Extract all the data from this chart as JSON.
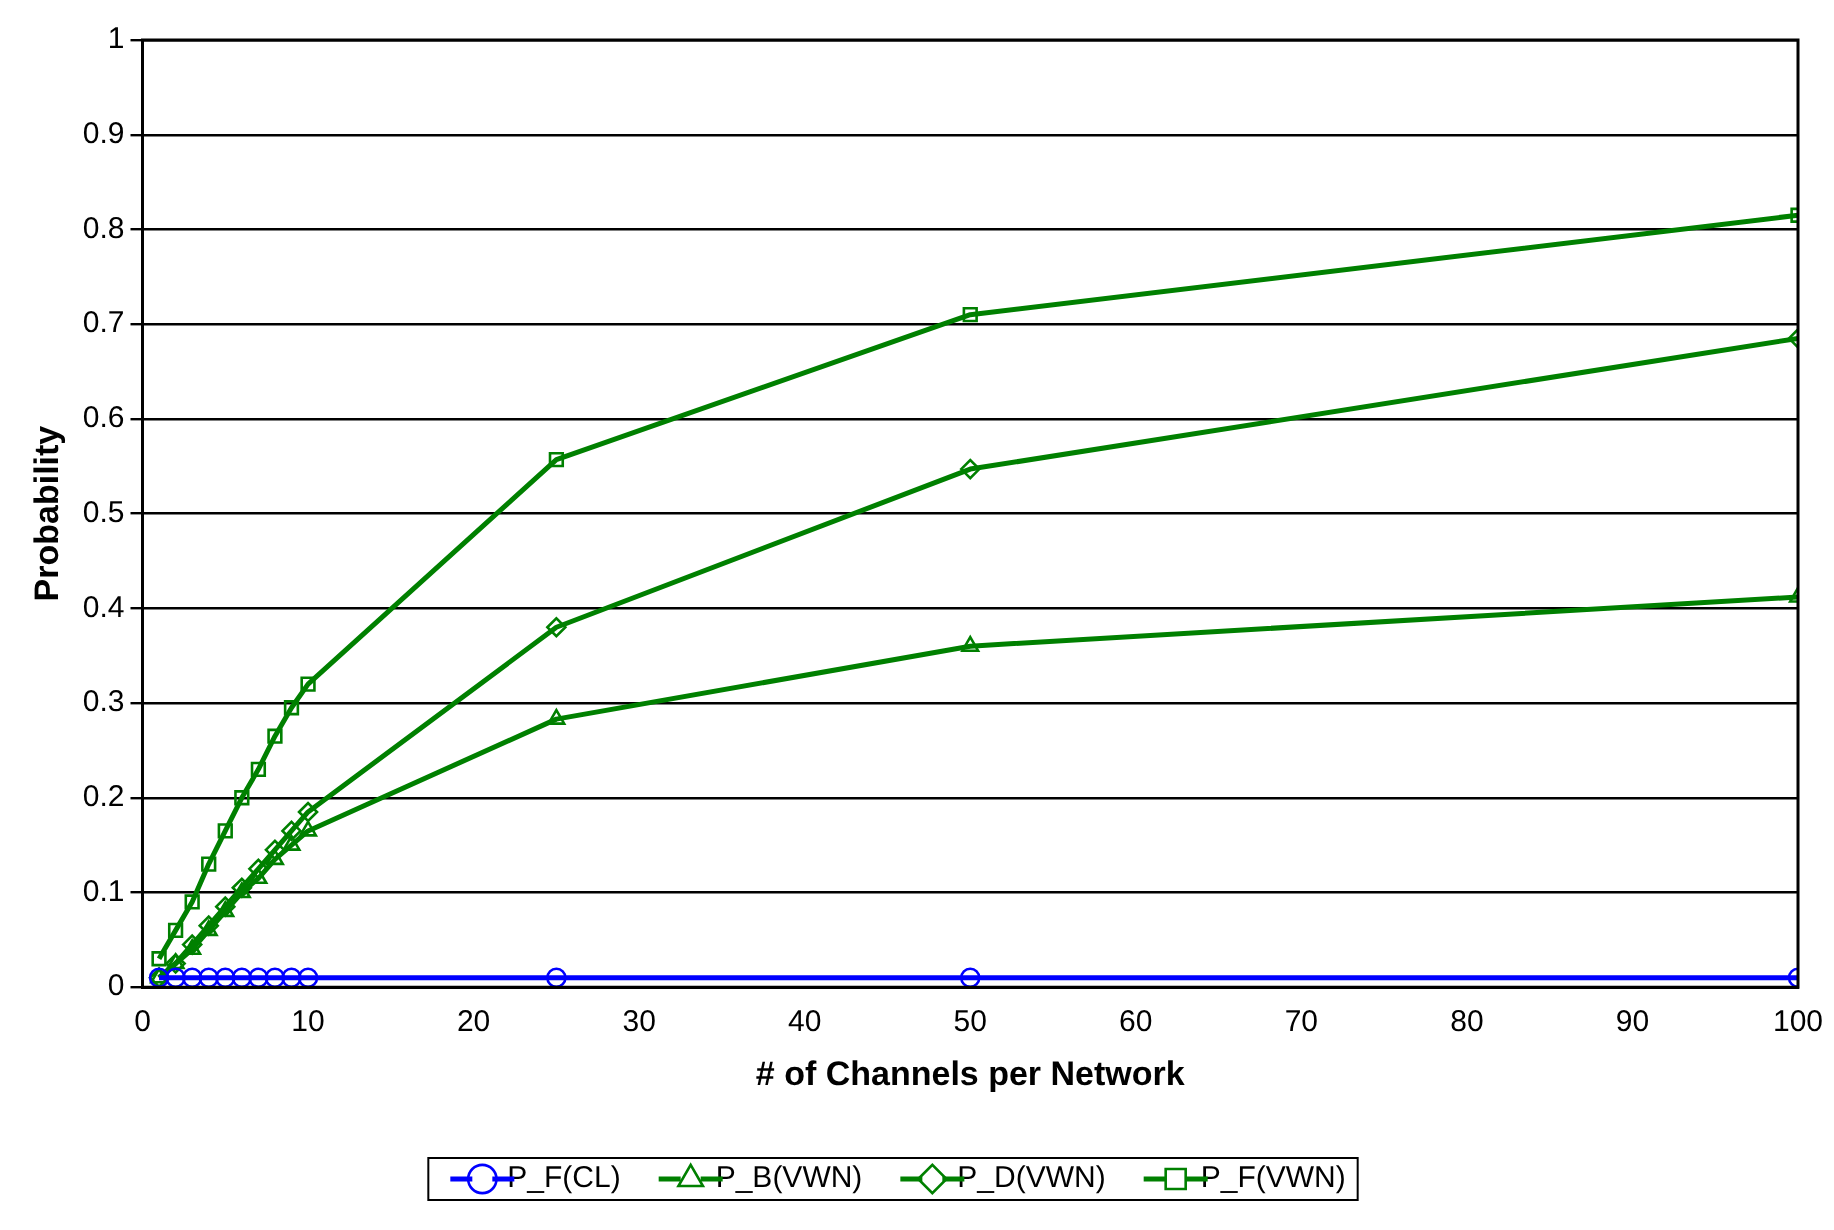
{
  "chart_data": {
    "type": "line",
    "xlabel": "# of Channels per Network",
    "ylabel": "Probability",
    "x": [
      1,
      2,
      3,
      4,
      5,
      6,
      7,
      8,
      9,
      10,
      25,
      50,
      100
    ],
    "xlim": [
      0,
      100
    ],
    "xticks": [
      0,
      10,
      20,
      30,
      40,
      50,
      60,
      70,
      80,
      90,
      100
    ],
    "ylim": [
      0,
      1
    ],
    "yticks": [
      0,
      0.1,
      0.2,
      0.3,
      0.4,
      0.5,
      0.6,
      0.7,
      0.8,
      0.9,
      1
    ],
    "grid": "y",
    "legend": "bottom",
    "line_style": "solid",
    "series": [
      {
        "name": "P_F(CL)",
        "color": "#0000ff",
        "marker": "circle",
        "values": [
          0.01,
          0.01,
          0.01,
          0.01,
          0.01,
          0.01,
          0.01,
          0.01,
          0.01,
          0.01,
          0.01,
          0.01,
          0.01
        ]
      },
      {
        "name": "P_B(VWN)",
        "color": "#008000",
        "marker": "triangle",
        "values": [
          0.01,
          0.025,
          0.04,
          0.06,
          0.08,
          0.1,
          0.115,
          0.135,
          0.15,
          0.165,
          0.283,
          0.36,
          0.412
        ]
      },
      {
        "name": "P_D(VWN)",
        "color": "#008000",
        "marker": "diamond",
        "values": [
          0.01,
          0.025,
          0.045,
          0.065,
          0.085,
          0.105,
          0.125,
          0.145,
          0.165,
          0.185,
          0.38,
          0.547,
          0.685
        ]
      },
      {
        "name": "P_F(VWN)",
        "color": "#008000",
        "marker": "square",
        "values": [
          0.03,
          0.06,
          0.09,
          0.13,
          0.165,
          0.2,
          0.23,
          0.265,
          0.295,
          0.32,
          0.557,
          0.71,
          0.815
        ]
      }
    ]
  }
}
